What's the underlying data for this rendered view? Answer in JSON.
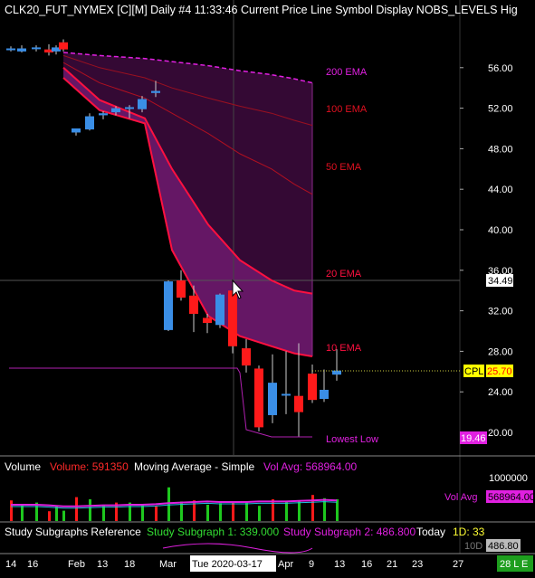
{
  "header": {
    "title": "CLK20_FUT_NYMEX [C][M]  Daily  #4 11:33:46 Current Price Line  Symbol Display  NOBS_LEVELS  Hig"
  },
  "price_axis": {
    "ticks": [
      "56.00",
      "52.00",
      "48.00",
      "44.00",
      "40.00",
      "36.00",
      "32.00",
      "28.00",
      "24.00",
      "20.00"
    ],
    "crosshair_value": "34.49",
    "current_price": "25.70",
    "lowest_low_value": "19.46"
  },
  "ema_labels": [
    {
      "text": "200 EMA",
      "color": "#e020e0"
    },
    {
      "text": "100 EMA",
      "color": "#e01020"
    },
    {
      "text": "50 EMA",
      "color": "#e01020"
    },
    {
      "text": "20 EMA",
      "color": "#ff1040"
    },
    {
      "text": "10 EMA",
      "color": "#ff1040"
    }
  ],
  "labels": {
    "cpl": "CPL",
    "lowest_low": "Lowest Low"
  },
  "volume_panel": {
    "label_volume": "Volume",
    "volume_value": "Volume: 591350",
    "ma_label": "Moving Average - Simple",
    "vol_avg_label": "Vol Avg: 568964.00",
    "axis_top": "1000000",
    "legend": "Vol Avg",
    "legend_value": "568964.00"
  },
  "study_panel": {
    "title": "Study Subgraphs Reference",
    "sg1": "Study Subgraph 1: 339.000",
    "sg2": "Study Subgraph 2: 486.800",
    "today": "Today",
    "d1": "1D: 33",
    "d10": "10D",
    "d10_value": "486.80"
  },
  "date_axis": {
    "labels": [
      "14",
      "16",
      "Feb",
      "13",
      "18",
      "Mar",
      "Tue 2020-03-17",
      "Apr",
      "9",
      "13",
      "16",
      "21",
      "23",
      "27"
    ],
    "tag": "28 L E"
  },
  "colors": {
    "up": "#3a8ee6",
    "down": "#ff1a1a",
    "ema200": "#e020e0",
    "cloud": "#6a1a6a"
  },
  "chart_data": {
    "type": "candlestick",
    "series": [
      {
        "name": "200 EMA",
        "values": [
          57.5,
          57.2,
          56.9,
          56.6,
          56.2,
          55.7,
          55.3,
          54.9,
          54.5
        ]
      },
      {
        "name": "100 EMA",
        "values": [
          57.2,
          56.0,
          55.0,
          54.0,
          53.0,
          52.2,
          51.5,
          50.8,
          50.3
        ]
      },
      {
        "name": "50 EMA",
        "values": [
          56.5,
          54.5,
          53.0,
          51.5,
          49.5,
          47.5,
          46.0,
          44.5,
          43.5
        ]
      },
      {
        "name": "20 EMA",
        "values": [
          56.0,
          52.8,
          51.0,
          46.0,
          40.5,
          37.0,
          35.0,
          34.0,
          33.7
        ]
      },
      {
        "name": "10 EMA",
        "values": [
          55.0,
          51.8,
          50.5,
          38.0,
          31.5,
          29.5,
          28.5,
          27.8,
          27.5
        ]
      }
    ],
    "candles": [
      {
        "o": 57.8,
        "h": 58.1,
        "l": 57.6,
        "c": 57.9
      },
      {
        "o": 57.6,
        "h": 58.2,
        "l": 57.5,
        "c": 57.9
      },
      {
        "o": 58.0,
        "h": 58.2,
        "l": 57.6,
        "c": 58.0
      },
      {
        "o": 57.8,
        "h": 58.3,
        "l": 57.2,
        "c": 57.5
      },
      {
        "o": 57.6,
        "h": 58.2,
        "l": 57.3,
        "c": 58.0
      },
      {
        "o": 58.5,
        "h": 58.8,
        "l": 57.6,
        "c": 57.8
      },
      {
        "o": 49.6,
        "h": 50.0,
        "l": 49.3,
        "c": 50.0
      },
      {
        "o": 49.9,
        "h": 51.5,
        "l": 49.8,
        "c": 51.2
      },
      {
        "o": 51.3,
        "h": 51.7,
        "l": 50.9,
        "c": 51.5
      },
      {
        "o": 51.6,
        "h": 52.2,
        "l": 51.3,
        "c": 52.0
      },
      {
        "o": 52.1,
        "h": 52.3,
        "l": 51.0,
        "c": 52.1
      },
      {
        "o": 51.9,
        "h": 53.2,
        "l": 51.6,
        "c": 52.9
      },
      {
        "o": 53.5,
        "h": 54.7,
        "l": 53.1,
        "c": 53.7
      },
      {
        "o": 30.1,
        "h": 35.0,
        "l": 30.0,
        "c": 34.9
      },
      {
        "o": 35.0,
        "h": 36.0,
        "l": 33.0,
        "c": 33.3
      },
      {
        "o": 33.5,
        "h": 34.5,
        "l": 29.9,
        "c": 31.7
      },
      {
        "o": 31.3,
        "h": 31.7,
        "l": 29.8,
        "c": 30.8
      },
      {
        "o": 30.6,
        "h": 33.7,
        "l": 30.3,
        "c": 33.6
      },
      {
        "o": 34.0,
        "h": 34.2,
        "l": 27.8,
        "c": 28.5
      },
      {
        "o": 28.3,
        "h": 29.2,
        "l": 25.9,
        "c": 26.6
      },
      {
        "o": 26.3,
        "h": 26.6,
        "l": 20.1,
        "c": 20.5
      },
      {
        "o": 21.7,
        "h": 27.7,
        "l": 20.9,
        "c": 24.9
      },
      {
        "o": 23.7,
        "h": 28.0,
        "l": 21.8,
        "c": 23.8
      },
      {
        "o": 23.6,
        "h": 28.8,
        "l": 19.6,
        "c": 22.0
      },
      {
        "o": 25.8,
        "h": 26.7,
        "l": 22.9,
        "c": 23.2
      },
      {
        "o": 23.3,
        "h": 26.2,
        "l": 23.0,
        "c": 24.2
      },
      {
        "o": 25.7,
        "h": 28.2,
        "l": 25.1,
        "c": 26.1
      }
    ],
    "volume": [
      0.38,
      0.31,
      0.34,
      0.18,
      0.29,
      0.19,
      0.44,
      0.4,
      0.28,
      0.34,
      0.34,
      0.31,
      0.27,
      0.62,
      0.36,
      0.38,
      0.3,
      0.33,
      0.34,
      0.34,
      0.28,
      0.4,
      0.36,
      0.38,
      0.48,
      0.42,
      0.4
    ],
    "vol_avg": [
      0.3,
      0.3,
      0.3,
      0.29,
      0.28,
      0.27,
      0.27,
      0.28,
      0.29,
      0.29,
      0.3,
      0.3,
      0.31,
      0.33,
      0.34,
      0.35,
      0.36,
      0.35,
      0.35,
      0.35,
      0.36,
      0.36,
      0.36,
      0.37,
      0.38,
      0.39,
      0.38
    ],
    "ylim": [
      19,
      58.6
    ]
  }
}
